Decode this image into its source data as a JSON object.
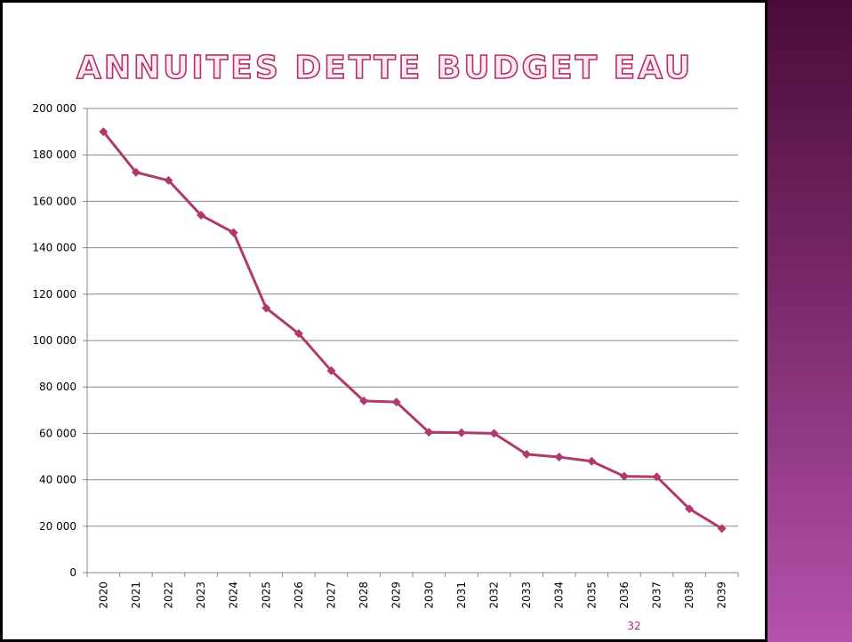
{
  "chart_data": {
    "type": "line",
    "title": "ANNUITES DETTE BUDGET EAU",
    "categories": [
      "2020",
      "2021",
      "2022",
      "2023",
      "2024",
      "2025",
      "2026",
      "2027",
      "2028",
      "2029",
      "2030",
      "2031",
      "2032",
      "2033",
      "2034",
      "2035",
      "2036",
      "2037",
      "2038",
      "2039"
    ],
    "series": [
      {
        "color": "#b03a6e",
        "values": [
          190000,
          172500,
          169000,
          154000,
          146500,
          114000,
          103000,
          87000,
          74000,
          73500,
          60500,
          60300,
          60000,
          51000,
          49800,
          48000,
          41500,
          41300,
          27500,
          19000
        ]
      }
    ],
    "ylim": [
      0,
      200000
    ],
    "yticks": [
      0,
      {
        "value": 20000,
        "label": "20 000"
      },
      {
        "value": 40000,
        "label": "40 000"
      },
      {
        "value": 60000,
        "label": "60 000"
      },
      {
        "value": 80000,
        "label": "80 000"
      },
      {
        "value": 100000,
        "label": "100 000"
      },
      {
        "value": 120000,
        "label": "120 000"
      },
      {
        "value": 140000,
        "label": "140 000"
      },
      {
        "value": 160000,
        "label": "160 000"
      },
      {
        "value": 180000,
        "label": "180 000"
      },
      {
        "value": 200000,
        "label": "200 000"
      }
    ],
    "grid": true,
    "page_number": "32"
  }
}
